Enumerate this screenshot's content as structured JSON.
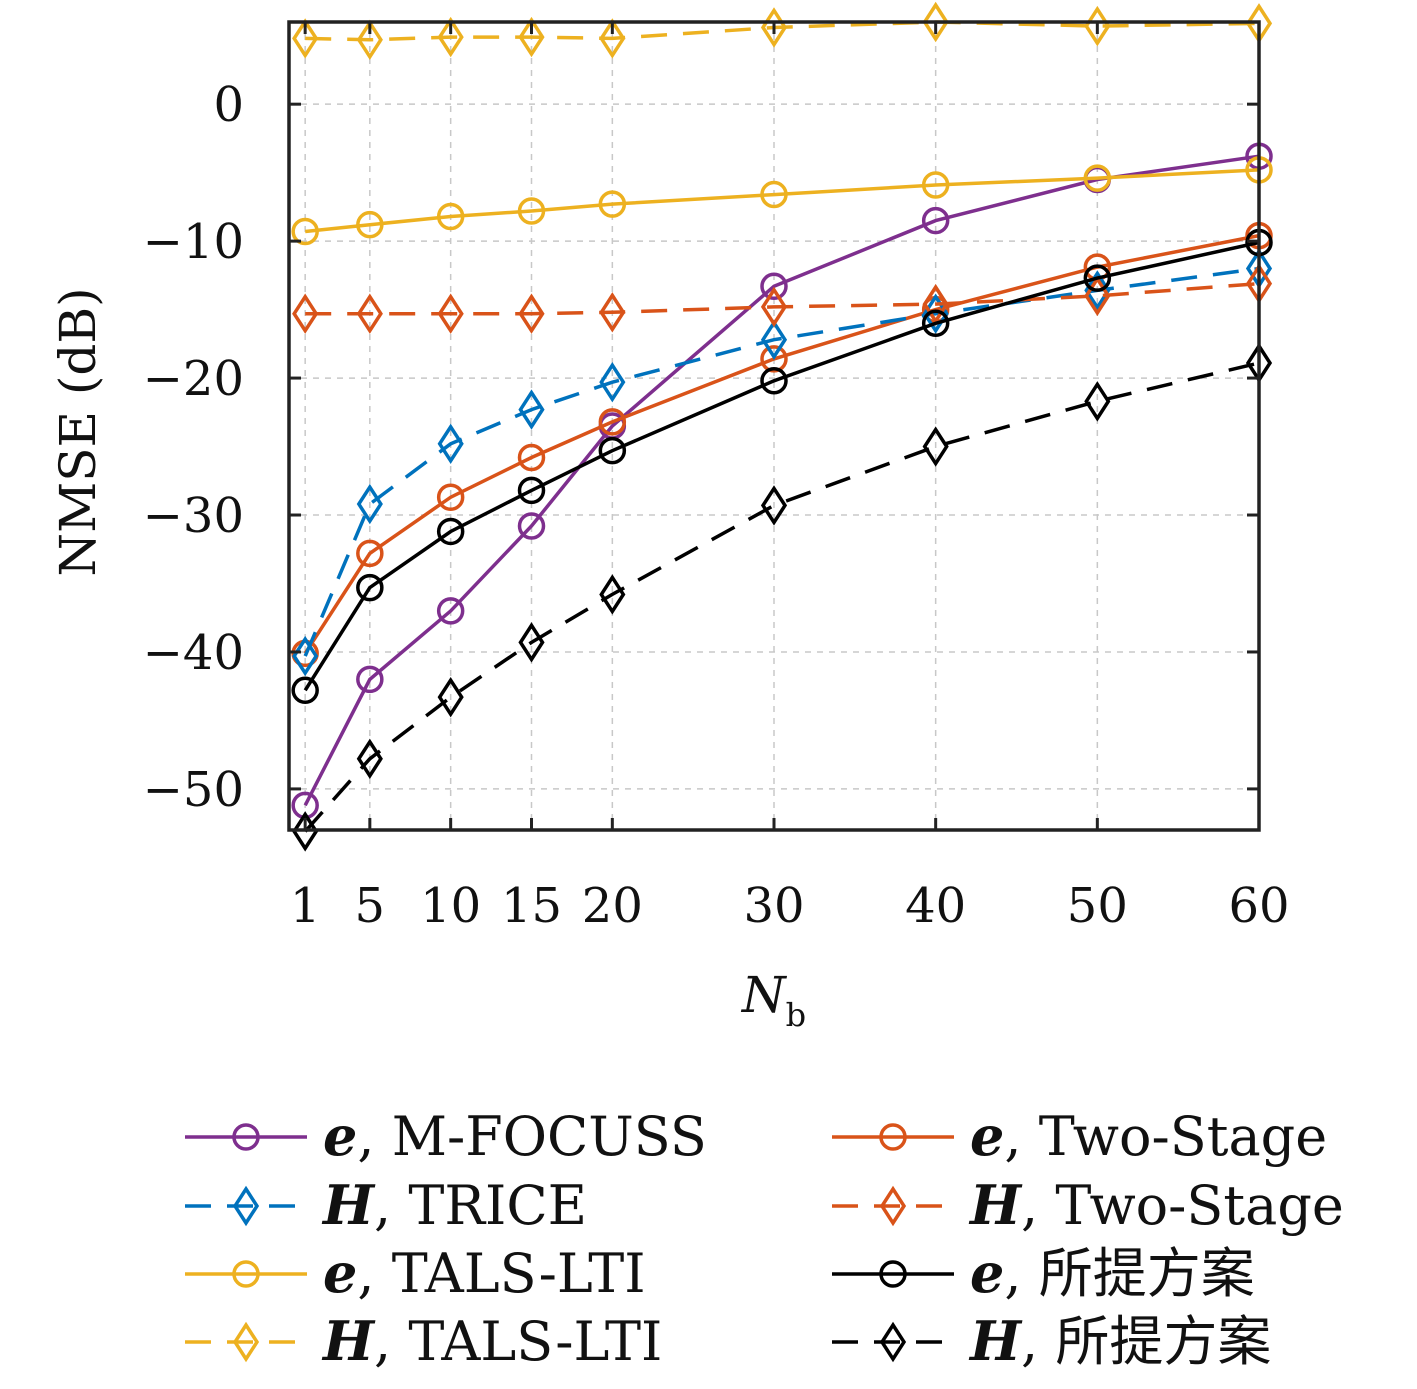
{
  "chart_data": {
    "type": "line",
    "xlabel": "N",
    "xlabel_sub": "b",
    "ylabel": "NMSE (dB)",
    "x": [
      1,
      5,
      10,
      15,
      20,
      30,
      40,
      50,
      60
    ],
    "xticks": [
      "1",
      "5",
      "10",
      "15",
      "20",
      "30",
      "40",
      "50",
      "60"
    ],
    "xlim": [
      0,
      60
    ],
    "yticks": [
      0,
      -10,
      -20,
      -30,
      -40,
      -50
    ],
    "ytick_labels": [
      "0",
      "−10",
      "−20",
      "−30",
      "−40",
      "−50"
    ],
    "ylim": [
      -53,
      6
    ],
    "grid": true,
    "legend_position": "below",
    "series": [
      {
        "name": "M-FOCUSS",
        "symbol": "e",
        "color": "#7e2f8e",
        "dash": "solid",
        "marker": "circle",
        "values": [
          -51.2,
          -42,
          -37,
          -30.8,
          -23.5,
          -13.3,
          -8.5,
          -5.5,
          -3.8
        ]
      },
      {
        "name": "Two-Stage",
        "symbol": "e",
        "color": "#d95319",
        "dash": "solid",
        "marker": "circle",
        "values": [
          -40.1,
          -32.8,
          -28.7,
          -25.8,
          -23.2,
          -18.6,
          -15,
          -11.9,
          -9.6
        ]
      },
      {
        "name": "TRICE",
        "symbol": "H",
        "color": "#0072bd",
        "dash": "dashed",
        "marker": "diamond",
        "values": [
          -40.3,
          -29.2,
          -24.8,
          -22.3,
          -20.3,
          -17.2,
          -15.3,
          -13.6,
          -12
        ]
      },
      {
        "name": "Two-Stage",
        "symbol": "H",
        "color": "#d95319",
        "dash": "dashed",
        "marker": "diamond",
        "values": [
          -15.3,
          -15.3,
          -15.3,
          -15.3,
          -15.2,
          -14.8,
          -14.6,
          -14,
          -13.1
        ]
      },
      {
        "name": "TALS-LTI",
        "symbol": "e",
        "color": "#edb120",
        "dash": "solid",
        "marker": "circle",
        "values": [
          -9.3,
          -8.8,
          -8.2,
          -7.8,
          -7.3,
          -6.6,
          -5.9,
          -5.4,
          -4.8
        ]
      },
      {
        "name": "所提方案",
        "symbol": "e",
        "color": "#000000",
        "dash": "solid",
        "marker": "circle",
        "values": [
          -42.8,
          -35.3,
          -31.2,
          -28.2,
          -25.3,
          -20.2,
          -16,
          -12.7,
          -10.1
        ]
      },
      {
        "name": "TALS-LTI",
        "symbol": "H",
        "color": "#edb120",
        "dash": "dashed",
        "marker": "diamond",
        "values": [
          4.8,
          4.7,
          4.9,
          4.9,
          4.8,
          5.6,
          6,
          5.7,
          5.9
        ]
      },
      {
        "name": "所提方案",
        "symbol": "H",
        "color": "#000000",
        "dash": "dashed",
        "marker": "diamond",
        "values": [
          -53.1,
          -47.8,
          -43.3,
          -39.3,
          -35.8,
          -29.3,
          -25,
          -21.7,
          -18.9
        ]
      }
    ]
  }
}
